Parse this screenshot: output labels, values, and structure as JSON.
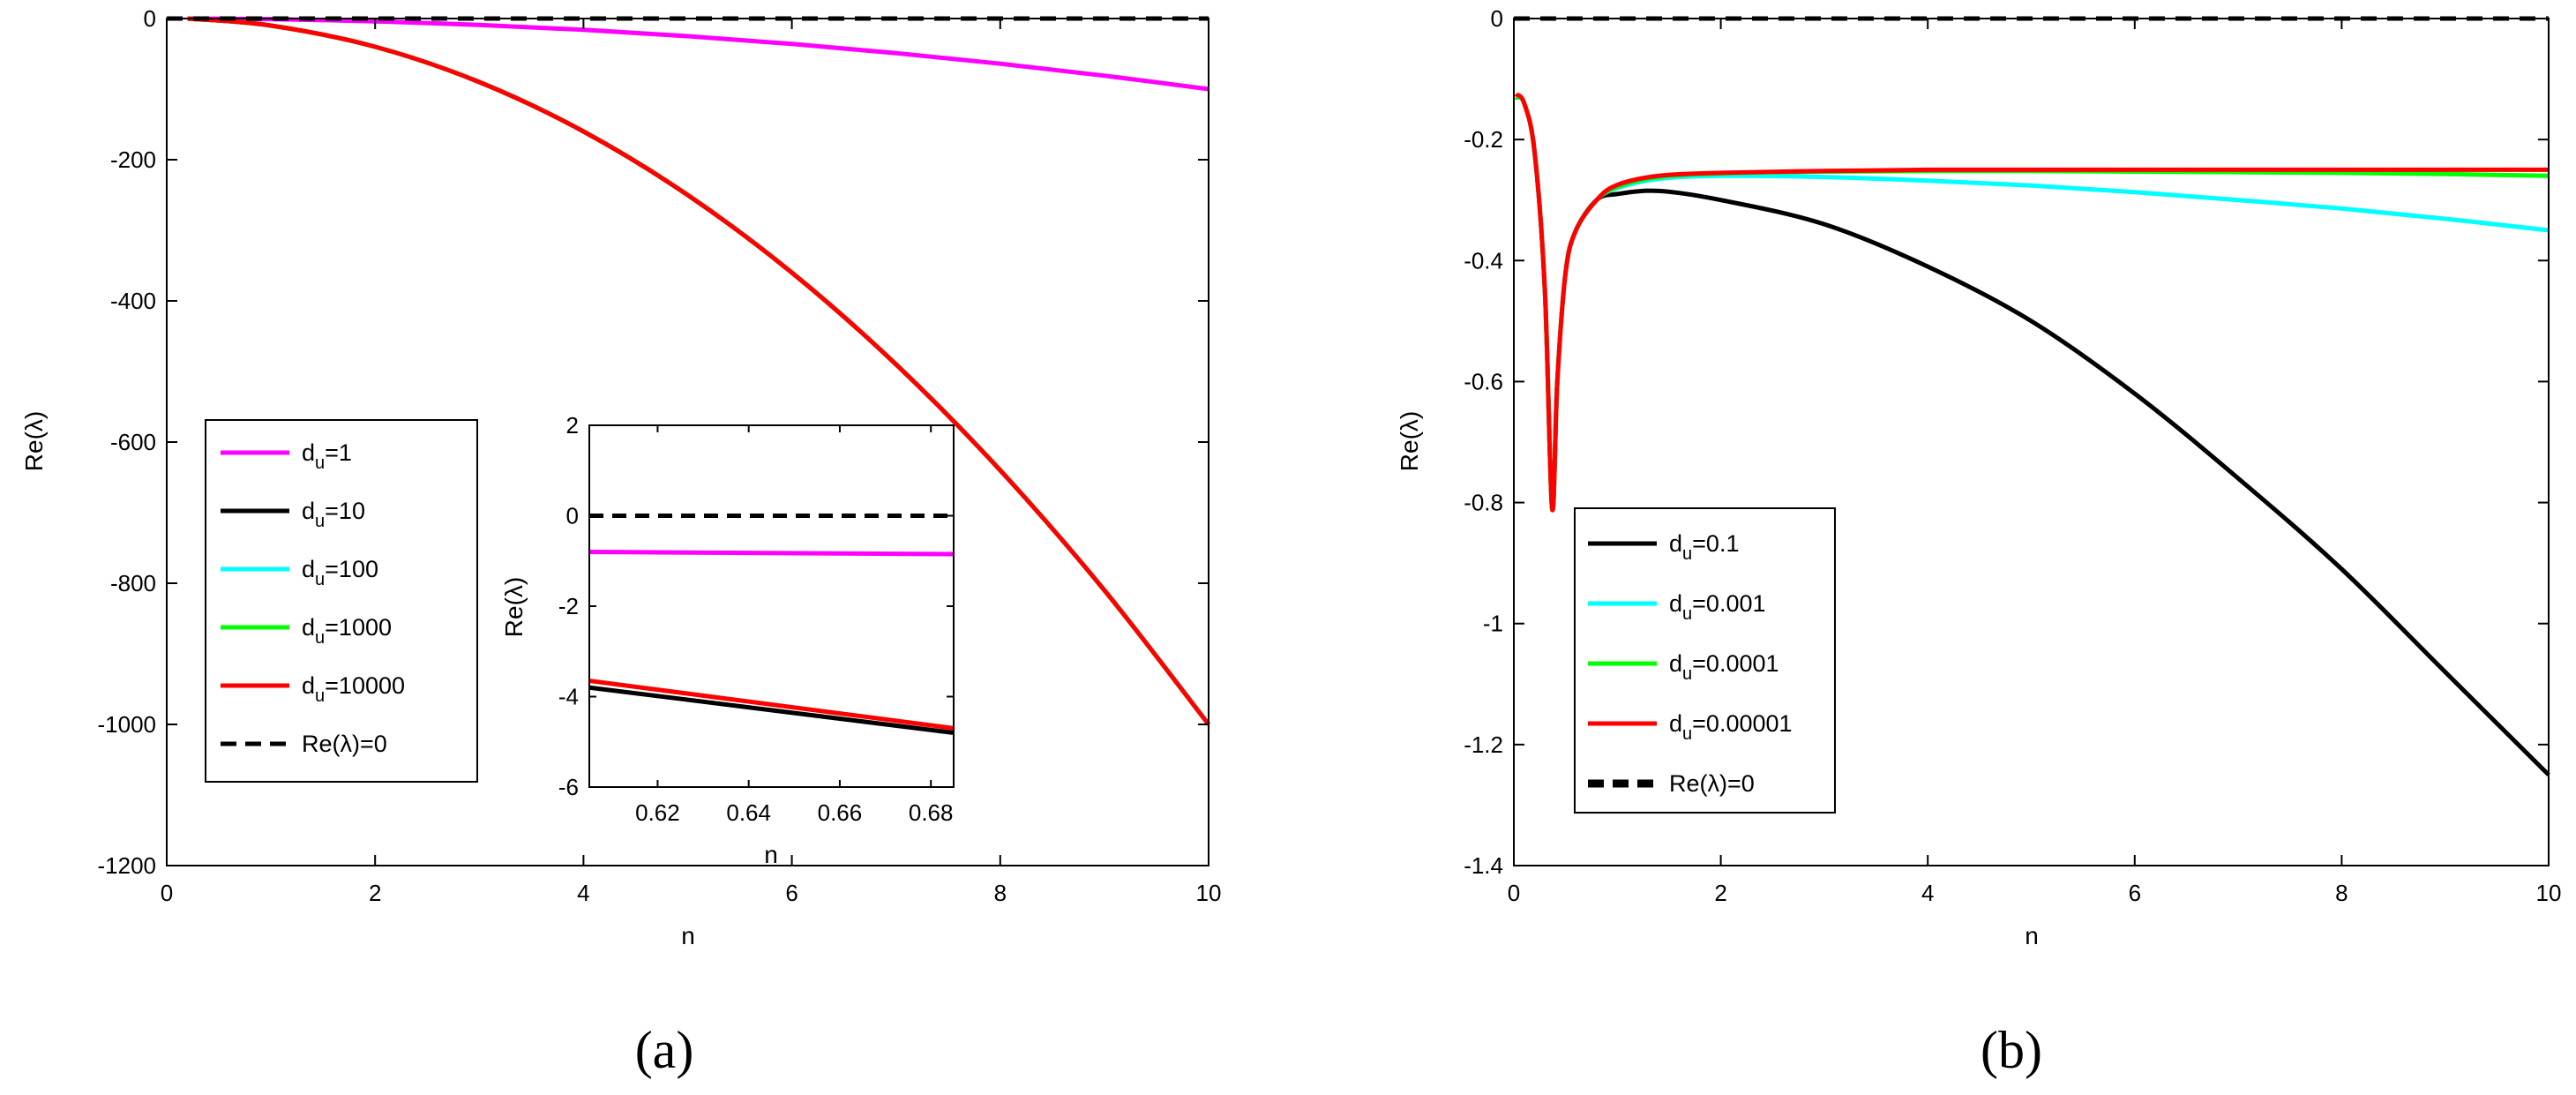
{
  "chart_data": [
    {
      "type": "line",
      "id": "a",
      "panel_label": "(a)",
      "xlabel": "n",
      "ylabel": "Re(λ)",
      "xlim": [
        0,
        10
      ],
      "ylim": [
        -1200,
        0
      ],
      "xticks": [
        0,
        2,
        4,
        6,
        8,
        10
      ],
      "yticks": [
        0,
        -200,
        -400,
        -600,
        -800,
        -1000,
        -1200
      ],
      "legend_position": "center-left",
      "series": [
        {
          "name": "d_u=1",
          "label_main": "d",
          "label_sub": "u",
          "label_rest": "=1",
          "color": "#ff00ff",
          "dash": "solid",
          "x": [
            0.2,
            1,
            2,
            3,
            4,
            5,
            6,
            7,
            8,
            9,
            10
          ],
          "y": [
            0,
            -1,
            -4,
            -9,
            -16,
            -25,
            -36,
            -49,
            -64,
            -81,
            -100
          ]
        },
        {
          "name": "d_u=10",
          "label_main": "d",
          "label_sub": "u",
          "label_rest": "=10",
          "color": "#000000",
          "dash": "solid",
          "x": [
            0.2,
            1,
            2,
            3,
            4,
            5,
            6,
            7,
            8,
            9,
            10
          ],
          "y": [
            0,
            -10,
            -40,
            -90,
            -160,
            -250,
            -360,
            -490,
            -640,
            -810,
            -1000
          ]
        },
        {
          "name": "d_u=100",
          "label_main": "d",
          "label_sub": "u",
          "label_rest": "=100",
          "color": "#00ffff",
          "dash": "solid",
          "x": [
            0.2,
            1,
            2,
            3,
            4,
            5,
            6,
            7,
            8,
            9,
            10
          ],
          "y": [
            0,
            -10,
            -40,
            -90,
            -160,
            -250,
            -360,
            -490,
            -640,
            -810,
            -1000
          ]
        },
        {
          "name": "d_u=1000",
          "label_main": "d",
          "label_sub": "u",
          "label_rest": "=1000",
          "color": "#00ff00",
          "dash": "solid",
          "x": [
            0.2,
            1,
            2,
            3,
            4,
            5,
            6,
            7,
            8,
            9,
            10
          ],
          "y": [
            0,
            -10,
            -40,
            -90,
            -160,
            -250,
            -360,
            -490,
            -640,
            -810,
            -1000
          ]
        },
        {
          "name": "d_u=10000",
          "label_main": "d",
          "label_sub": "u",
          "label_rest": "=10000",
          "color": "#ff0000",
          "dash": "solid",
          "x": [
            0.2,
            1,
            2,
            3,
            4,
            5,
            6,
            7,
            8,
            9,
            10
          ],
          "y": [
            0,
            -10,
            -40,
            -90,
            -160,
            -250,
            -360,
            -490,
            -640,
            -810,
            -1000
          ]
        },
        {
          "name": "Re(λ)=0",
          "label_main": "Re(λ)=0",
          "label_sub": "",
          "label_rest": "",
          "color": "#000000",
          "dash": "dashed",
          "x": [
            0,
            10
          ],
          "y": [
            0,
            0
          ]
        }
      ],
      "inset": {
        "xlabel": "n",
        "ylabel": "Re(λ)",
        "xlim": [
          0.605,
          0.685
        ],
        "ylim": [
          -6,
          2
        ],
        "xticks": [
          0.62,
          0.64,
          0.66,
          0.68
        ],
        "yticks": [
          2,
          0,
          -2,
          -4,
          -6
        ],
        "series": [
          {
            "name": "d_u=1",
            "color": "#ff00ff",
            "dash": "solid",
            "x": [
              0.605,
              0.685
            ],
            "y": [
              -0.8,
              -0.85
            ]
          },
          {
            "name": "d_u=10",
            "color": "#000000",
            "dash": "solid",
            "x": [
              0.605,
              0.685
            ],
            "y": [
              -3.8,
              -4.8
            ]
          },
          {
            "name": "d_u=10000",
            "color": "#ff0000",
            "dash": "solid",
            "x": [
              0.605,
              0.685
            ],
            "y": [
              -3.65,
              -4.7
            ]
          },
          {
            "name": "Re(λ)=0",
            "color": "#000000",
            "dash": "dashed",
            "x": [
              0.605,
              0.685
            ],
            "y": [
              0,
              0
            ]
          }
        ]
      }
    },
    {
      "type": "line",
      "id": "b",
      "panel_label": "(b)",
      "xlabel": "n",
      "ylabel": "Re(λ)",
      "xlim": [
        0,
        10
      ],
      "ylim": [
        -1.4,
        0
      ],
      "xticks": [
        0,
        2,
        4,
        6,
        8,
        10
      ],
      "yticks": [
        0,
        -0.2,
        -0.4,
        -0.6,
        -0.8,
        -1,
        -1.2,
        -1.4
      ],
      "legend_position": "lower-left",
      "series": [
        {
          "name": "d_u=0.1",
          "label_main": "d",
          "label_sub": "u",
          "label_rest": "=0.1",
          "color": "#000000",
          "dash": "solid",
          "x": [
            0.02,
            0.1,
            0.2,
            0.3,
            0.37,
            0.42,
            0.5,
            0.6,
            0.8,
            1.0,
            1.4,
            2,
            3,
            4,
            5,
            6,
            7,
            8,
            9,
            10
          ],
          "y": [
            -0.13,
            -0.14,
            -0.22,
            -0.45,
            -0.81,
            -0.6,
            -0.42,
            -0.35,
            -0.3,
            -0.29,
            -0.285,
            -0.3,
            -0.34,
            -0.41,
            -0.5,
            -0.62,
            -0.76,
            -0.91,
            -1.08,
            -1.25
          ]
        },
        {
          "name": "d_u=0.001",
          "label_main": "d",
          "label_sub": "u",
          "label_rest": "=0.001",
          "color": "#00ffff",
          "dash": "solid",
          "x": [
            0.02,
            0.1,
            0.2,
            0.3,
            0.37,
            0.42,
            0.5,
            0.6,
            0.8,
            1.0,
            1.4,
            2,
            3,
            4,
            5,
            6,
            7,
            8,
            9,
            10
          ],
          "y": [
            -0.13,
            -0.14,
            -0.22,
            -0.45,
            -0.81,
            -0.6,
            -0.42,
            -0.35,
            -0.3,
            -0.28,
            -0.265,
            -0.26,
            -0.262,
            -0.268,
            -0.276,
            -0.287,
            -0.3,
            -0.314,
            -0.331,
            -0.35
          ]
        },
        {
          "name": "d_u=0.0001",
          "label_main": "d",
          "label_sub": "u",
          "label_rest": "=0.0001",
          "color": "#00ff00",
          "dash": "solid",
          "x": [
            0.02,
            0.1,
            0.2,
            0.3,
            0.37,
            0.42,
            0.5,
            0.6,
            0.8,
            1.0,
            1.4,
            2,
            3,
            4,
            5,
            6,
            7,
            8,
            9,
            10
          ],
          "y": [
            -0.13,
            -0.14,
            -0.22,
            -0.45,
            -0.81,
            -0.6,
            -0.42,
            -0.35,
            -0.3,
            -0.278,
            -0.262,
            -0.256,
            -0.253,
            -0.252,
            -0.252,
            -0.253,
            -0.254,
            -0.255,
            -0.257,
            -0.26
          ]
        },
        {
          "name": "d_u=0.00001",
          "label_main": "d",
          "label_sub": "u",
          "label_rest": "=0.00001",
          "color": "#ff0000",
          "dash": "solid",
          "x": [
            0.02,
            0.1,
            0.2,
            0.3,
            0.37,
            0.42,
            0.5,
            0.6,
            0.8,
            1.0,
            1.4,
            2,
            3,
            4,
            5,
            6,
            7,
            8,
            9,
            10
          ],
          "y": [
            -0.125,
            -0.14,
            -0.22,
            -0.45,
            -0.81,
            -0.6,
            -0.42,
            -0.35,
            -0.3,
            -0.275,
            -0.26,
            -0.255,
            -0.252,
            -0.25,
            -0.25,
            -0.25,
            -0.25,
            -0.25,
            -0.25,
            -0.25
          ]
        },
        {
          "name": "Re(λ)=0",
          "label_main": "Re(λ)=0",
          "label_sub": "",
          "label_rest": "",
          "color": "#000000",
          "dash": "dashed",
          "x": [
            0,
            10
          ],
          "y": [
            0,
            0
          ]
        }
      ]
    }
  ]
}
